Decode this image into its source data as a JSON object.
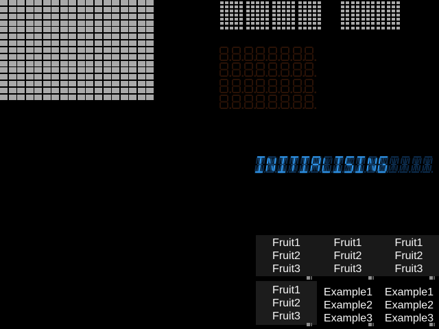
{
  "app": {
    "title": "widget-demo-screen",
    "background": "#000000"
  },
  "colors": {
    "led_on": "#a9a9a9",
    "dot_on": "#a9a9a9",
    "sevenseg_unlit": "#2a1206",
    "segment_lit": "#3099f2",
    "segment_unlit": "#0c2c4d",
    "panel_bg": "#191919",
    "panel_bg_alt": "#1c1c1c",
    "list_text": "#f4f4f4",
    "grip_light": "#8f8f8f",
    "grip_dark": "#5a5a5a"
  },
  "led_matrix": {
    "columns": 18,
    "rows": 15
  },
  "dot_char_row": {
    "blocks": 4,
    "cols_per_block": 5,
    "rows": 7
  },
  "dot_grid": {
    "columns": 12,
    "rows": 7
  },
  "sevenseg_panel": {
    "rows": 4,
    "digits_per_row": 8,
    "state": "unlit"
  },
  "alnum_display": {
    "text": "INITIALISING",
    "cells": 16
  },
  "lists": {
    "row1": [
      {
        "items": [
          "Fruit1",
          "Fruit2",
          "Fruit3"
        ]
      },
      {
        "items": [
          "Fruit1",
          "Fruit2",
          "Fruit3"
        ]
      },
      {
        "items": [
          "Fruit1",
          "Fruit2",
          "Fruit3"
        ]
      }
    ],
    "row2": [
      {
        "items": [
          "Fruit1",
          "Fruit2",
          "Fruit3"
        ]
      },
      {
        "items": [
          "Example1",
          "Example2",
          "Example3"
        ]
      },
      {
        "items": [
          "Example1",
          "Example2",
          "Example3"
        ]
      }
    ]
  }
}
